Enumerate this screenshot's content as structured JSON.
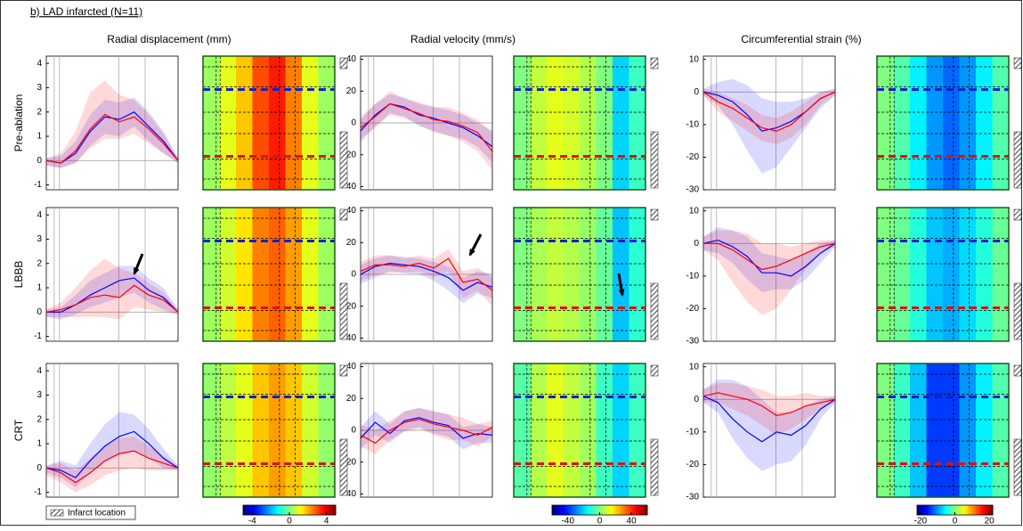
{
  "title": "b) LAD infarcted (N=11)",
  "column_titles": [
    "Radial displacement (mm)",
    "Radial velocity (mm/s)",
    "Circumferential strain (%)"
  ],
  "row_labels": [
    "Pre-ablation",
    "LBBB",
    "CRT"
  ],
  "legend": "Infarct location",
  "chart_data": [
    {
      "type": "line",
      "ylim": [
        -1.2,
        4.3
      ],
      "yticks": [
        -1,
        0,
        1,
        2,
        3,
        4
      ],
      "series": [
        {
          "color": "#0000ff",
          "values": [
            0,
            -0.1,
            0.3,
            1.2,
            1.8,
            1.7,
            2.0,
            1.4,
            0.8,
            0
          ],
          "lower": [
            -0.2,
            -0.3,
            -0.1,
            0.6,
            1.1,
            1.0,
            1.4,
            0.8,
            0.3,
            -0.1
          ],
          "upper": [
            0.1,
            0.2,
            0.8,
            1.9,
            2.5,
            2.4,
            2.6,
            2.0,
            1.2,
            0.1
          ]
        },
        {
          "color": "#ff0000",
          "values": [
            0,
            -0.1,
            0.4,
            1.3,
            1.9,
            1.6,
            1.8,
            1.3,
            0.7,
            0
          ],
          "lower": [
            -0.2,
            -0.3,
            -0.1,
            0.5,
            0.9,
            0.9,
            1.1,
            0.7,
            0.3,
            -0.1
          ],
          "upper": [
            0.1,
            0.3,
            1.2,
            2.8,
            3.3,
            2.7,
            2.5,
            1.9,
            1.1,
            0.1
          ]
        }
      ]
    },
    {
      "type": "line",
      "ylim": [
        -42,
        42
      ],
      "yticks": [
        -40,
        -20,
        0,
        20,
        40
      ],
      "series": [
        {
          "color": "#0000ff",
          "values": [
            -5,
            5,
            12,
            10,
            5,
            3,
            0,
            -3,
            -8,
            -15
          ],
          "lower": [
            -12,
            -2,
            6,
            4,
            -2,
            -5,
            -8,
            -10,
            -15,
            -25
          ],
          "upper": [
            2,
            12,
            18,
            16,
            12,
            10,
            8,
            5,
            0,
            -5
          ]
        },
        {
          "color": "#ff0000",
          "values": [
            -3,
            4,
            12,
            9,
            6,
            2,
            1,
            -2,
            -6,
            -18
          ],
          "lower": [
            -10,
            -3,
            5,
            3,
            -1,
            -6,
            -8,
            -12,
            -18,
            -30
          ],
          "upper": [
            4,
            12,
            20,
            15,
            13,
            10,
            10,
            6,
            2,
            -6
          ]
        }
      ]
    },
    {
      "type": "line",
      "ylim": [
        -30,
        11
      ],
      "yticks": [
        -30,
        -20,
        -10,
        0,
        10
      ],
      "series": [
        {
          "color": "#0000ff",
          "values": [
            0,
            -1,
            -3,
            -7,
            -12,
            -11,
            -9,
            -6,
            -2,
            0
          ],
          "lower": [
            -1,
            -4,
            -10,
            -18,
            -25,
            -23,
            -17,
            -11,
            -5,
            -1
          ],
          "upper": [
            1,
            3,
            4,
            2,
            -2,
            -3,
            -3,
            -2,
            0,
            1
          ]
        },
        {
          "color": "#ff0000",
          "values": [
            0,
            -3,
            -5,
            -8,
            -11,
            -12,
            -10,
            -6,
            -2,
            0
          ],
          "lower": [
            -1,
            -6,
            -9,
            -12,
            -15,
            -16,
            -14,
            -10,
            -4,
            -1
          ],
          "upper": [
            1,
            0,
            -2,
            -4,
            -7,
            -8,
            -6,
            -3,
            0,
            1
          ]
        }
      ]
    },
    {
      "type": "line",
      "ylim": [
        -1.2,
        4.3
      ],
      "yticks": [
        -1,
        0,
        1,
        2,
        3,
        4
      ],
      "series": [
        {
          "color": "#0000ff",
          "values": [
            0,
            0,
            0.3,
            0.7,
            1.0,
            1.3,
            1.4,
            0.9,
            0.6,
            0
          ],
          "lower": [
            -0.2,
            -0.3,
            -0.1,
            0.2,
            0.4,
            0.6,
            0.8,
            0.4,
            0.1,
            -0.1
          ],
          "upper": [
            0.1,
            0.2,
            0.7,
            1.3,
            1.6,
            1.9,
            1.9,
            1.4,
            1.0,
            0.1
          ]
        },
        {
          "color": "#ff0000",
          "values": [
            0,
            0.1,
            0.3,
            0.6,
            0.7,
            0.6,
            1.1,
            0.7,
            0.5,
            0
          ],
          "lower": [
            -0.2,
            -0.2,
            -0.2,
            -0.2,
            -0.2,
            -0.3,
            0.2,
            0.1,
            0,
            -0.1
          ],
          "upper": [
            0.1,
            0.4,
            1.0,
            1.7,
            2.2,
            1.8,
            1.6,
            1.2,
            0.8,
            0.1
          ]
        }
      ]
    },
    {
      "type": "line",
      "ylim": [
        -42,
        42
      ],
      "yticks": [
        -40,
        -20,
        0,
        20,
        40
      ],
      "series": [
        {
          "color": "#0000ff",
          "values": [
            0,
            5,
            7,
            6,
            5,
            2,
            -2,
            -10,
            -5,
            -8
          ],
          "lower": [
            -6,
            -2,
            2,
            1,
            0,
            -4,
            -10,
            -18,
            -12,
            -15
          ],
          "upper": [
            6,
            10,
            12,
            11,
            10,
            8,
            5,
            -2,
            2,
            0
          ]
        },
        {
          "color": "#ff0000",
          "values": [
            2,
            6,
            6,
            5,
            7,
            4,
            10,
            -5,
            -3,
            -10
          ],
          "lower": [
            -4,
            0,
            1,
            1,
            2,
            -2,
            2,
            -15,
            -10,
            -20
          ],
          "upper": [
            8,
            12,
            12,
            10,
            12,
            10,
            16,
            2,
            4,
            -2
          ]
        }
      ]
    },
    {
      "type": "line",
      "ylim": [
        -30,
        11
      ],
      "yticks": [
        -30,
        -20,
        -10,
        0,
        10
      ],
      "series": [
        {
          "color": "#0000ff",
          "values": [
            0,
            1,
            -1,
            -4,
            -9,
            -9,
            -10,
            -7,
            -3,
            0
          ],
          "lower": [
            -2,
            -3,
            -6,
            -11,
            -15,
            -14,
            -14,
            -11,
            -6,
            -1
          ],
          "upper": [
            2,
            5,
            4,
            2,
            -3,
            -4,
            -5,
            -3,
            0,
            1
          ]
        },
        {
          "color": "#ff0000",
          "values": [
            0,
            0,
            -2,
            -5,
            -8,
            -7,
            -5,
            -3,
            -1,
            0
          ],
          "lower": [
            -2,
            -5,
            -12,
            -18,
            -22,
            -20,
            -14,
            -8,
            -3,
            -1
          ],
          "upper": [
            2,
            4,
            4,
            3,
            0,
            0,
            -1,
            0,
            1,
            1
          ]
        }
      ]
    },
    {
      "type": "line",
      "ylim": [
        -1.2,
        4.3
      ],
      "yticks": [
        -1,
        0,
        1,
        2,
        3,
        4
      ],
      "series": [
        {
          "color": "#0000ff",
          "values": [
            0,
            -0.1,
            -0.4,
            0.3,
            0.9,
            1.3,
            1.5,
            1.0,
            0.4,
            0
          ],
          "lower": [
            -0.2,
            -0.4,
            -0.8,
            -0.2,
            0.2,
            0.5,
            0.7,
            0.4,
            0,
            -0.1
          ],
          "upper": [
            0.1,
            0.3,
            0.1,
            1.0,
            1.8,
            2.3,
            2.2,
            1.6,
            0.8,
            0.1
          ]
        },
        {
          "color": "#ff0000",
          "values": [
            0,
            -0.2,
            -0.6,
            -0.2,
            0.3,
            0.6,
            0.7,
            0.4,
            0.2,
            0
          ],
          "lower": [
            -0.3,
            -0.6,
            -1.0,
            -0.7,
            -0.3,
            -0.1,
            0,
            -0.1,
            -0.1,
            -0.1
          ],
          "upper": [
            0.1,
            0.2,
            -0.1,
            0.4,
            0.9,
            1.2,
            1.3,
            0.9,
            0.5,
            0.1
          ]
        }
      ]
    },
    {
      "type": "line",
      "ylim": [
        -42,
        42
      ],
      "yticks": [
        -40,
        -20,
        0,
        20,
        40
      ],
      "series": [
        {
          "color": "#0000ff",
          "values": [
            -5,
            5,
            -2,
            6,
            8,
            5,
            3,
            -5,
            -2,
            -3
          ],
          "lower": [
            -12,
            -3,
            -8,
            0,
            2,
            -2,
            -4,
            -12,
            -8,
            -8
          ],
          "upper": [
            2,
            12,
            4,
            12,
            14,
            12,
            10,
            2,
            4,
            2
          ]
        },
        {
          "color": "#ff0000",
          "values": [
            -3,
            -8,
            0,
            5,
            7,
            4,
            2,
            0,
            -3,
            2
          ],
          "lower": [
            -10,
            -15,
            -6,
            -1,
            1,
            -3,
            -6,
            -6,
            -10,
            -4
          ],
          "upper": [
            4,
            0,
            6,
            12,
            14,
            12,
            10,
            8,
            4,
            6
          ]
        }
      ]
    },
    {
      "type": "line",
      "ylim": [
        -30,
        11
      ],
      "yticks": [
        -30,
        -20,
        -10,
        0,
        10
      ],
      "series": [
        {
          "color": "#0000ff",
          "values": [
            1,
            -1,
            -6,
            -10,
            -13,
            -10,
            -11,
            -8,
            -3,
            0
          ],
          "lower": [
            -1,
            -4,
            -12,
            -18,
            -22,
            -20,
            -19,
            -14,
            -6,
            -1
          ],
          "upper": [
            3,
            6,
            6,
            4,
            0,
            -4,
            -4,
            -2,
            0,
            1
          ]
        },
        {
          "color": "#ff0000",
          "values": [
            1,
            2,
            1,
            0,
            -2,
            -5,
            -4,
            -2,
            -1,
            0
          ],
          "lower": [
            -1,
            -1,
            -3,
            -5,
            -8,
            -11,
            -9,
            -6,
            -3,
            -1
          ],
          "upper": [
            3,
            5,
            5,
            4,
            3,
            1,
            1,
            2,
            1,
            1
          ]
        }
      ]
    },
    {
      "type": "heatmap",
      "values": [
        0.3,
        1.0,
        1.8,
        3.0,
        3.5,
        2.5,
        1.0,
        0.3
      ]
    },
    {
      "type": "heatmap",
      "values": [
        0,
        8,
        12,
        10,
        6,
        0,
        -20,
        -8
      ]
    },
    {
      "type": "heatmap",
      "values": [
        0,
        -2,
        -6,
        -10,
        -12,
        -10,
        -6,
        -2
      ]
    },
    {
      "type": "heatmap",
      "values": [
        0.3,
        0.8,
        1.5,
        2.5,
        2.8,
        2.2,
        1.0,
        0.3
      ]
    },
    {
      "type": "heatmap",
      "values": [
        0,
        5,
        8,
        6,
        3,
        -3,
        -22,
        -10
      ]
    },
    {
      "type": "heatmap",
      "values": [
        0,
        -1,
        -4,
        -8,
        -9,
        -7,
        -4,
        -1
      ]
    },
    {
      "type": "heatmap",
      "values": [
        0.2,
        0.6,
        1.0,
        1.8,
        2.2,
        1.8,
        0.8,
        0.2
      ]
    },
    {
      "type": "heatmap",
      "values": [
        -5,
        6,
        12,
        8,
        4,
        -8,
        -20,
        -8
      ]
    },
    {
      "type": "heatmap",
      "values": [
        0,
        -3,
        -8,
        -14,
        -14,
        -10,
        -6,
        -2
      ]
    },
    {
      "type": "colorbar",
      "clim": [
        -5,
        5
      ],
      "cticks": [
        -4,
        0,
        4
      ]
    },
    {
      "type": "colorbar",
      "clim": [
        -60,
        60
      ],
      "cticks": [
        -40,
        0,
        40
      ]
    },
    {
      "type": "colorbar",
      "clim": [
        -22,
        22
      ],
      "cticks": [
        -20,
        0,
        20
      ]
    }
  ]
}
